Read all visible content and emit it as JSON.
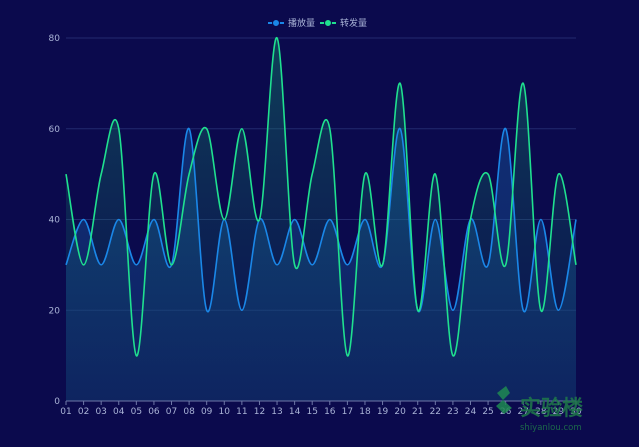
{
  "chart_data": {
    "type": "line",
    "title": "",
    "xlabel": "",
    "ylabel": "",
    "categories": [
      "01",
      "02",
      "03",
      "04",
      "05",
      "06",
      "07",
      "08",
      "09",
      "10",
      "11",
      "12",
      "13",
      "14",
      "15",
      "16",
      "17",
      "18",
      "19",
      "20",
      "21",
      "22",
      "23",
      "24",
      "25",
      "26",
      "27",
      "28",
      "29",
      "30"
    ],
    "ylim": [
      0,
      80
    ],
    "yticks": [
      0,
      20,
      40,
      60,
      80
    ],
    "grid": true,
    "legend_position": "top-center",
    "series": [
      {
        "name": "播放量",
        "color": "#1a87e8",
        "values": [
          30,
          40,
          30,
          40,
          30,
          40,
          30,
          60,
          20,
          40,
          20,
          40,
          30,
          40,
          30,
          40,
          30,
          40,
          30,
          60,
          20,
          40,
          20,
          40,
          30,
          60,
          20,
          40,
          20,
          40
        ]
      },
      {
        "name": "转发量",
        "color": "#1fe08f",
        "values": [
          50,
          30,
          50,
          60,
          10,
          50,
          30,
          50,
          60,
          40,
          60,
          40,
          80,
          30,
          50,
          60,
          10,
          50,
          30,
          70,
          20,
          50,
          10,
          40,
          50,
          30,
          70,
          20,
          50,
          30
        ]
      }
    ]
  },
  "watermark": {
    "text": "实验楼",
    "subtext": "shiyanlou.com"
  }
}
